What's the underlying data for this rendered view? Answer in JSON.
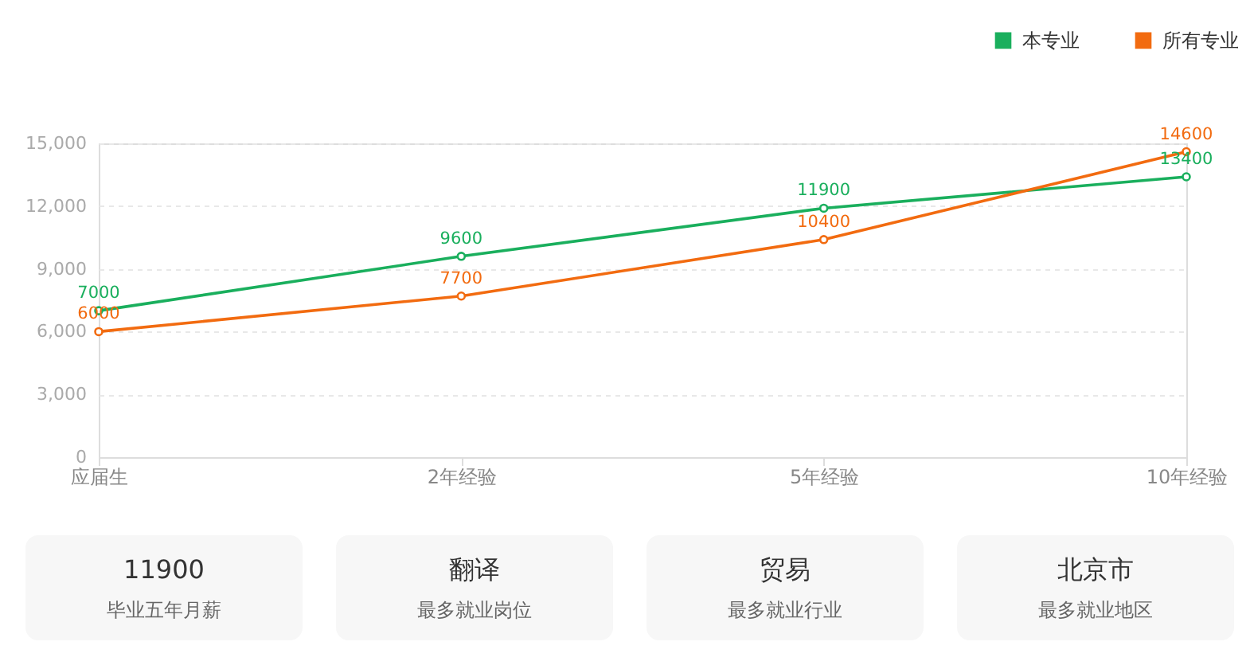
{
  "chart_data": [
    {
      "type": "line",
      "categories": [
        "应届生",
        "2年经验",
        "5年经验",
        "10年经验"
      ],
      "series": [
        {
          "name": "本专业",
          "color": "#1aaf5d",
          "values": [
            7000,
            9600,
            11900,
            13400
          ]
        },
        {
          "name": "所有专业",
          "color": "#f26b10",
          "values": [
            6000,
            7700,
            10400,
            14600
          ]
        }
      ],
      "ylim": [
        0,
        15000
      ],
      "yticks": [
        0,
        {
          "value": 3000,
          "label": "3,000"
        },
        {
          "value": 6000,
          "label": "6,000"
        },
        {
          "value": 9000,
          "label": "9,000"
        },
        {
          "value": 12000,
          "label": "12,000"
        },
        {
          "value": 15000,
          "label": "15,000"
        }
      ],
      "grid": "y",
      "legend": "top right",
      "marker": "circle",
      "line_style": "solid",
      "data_labels": true
    },
    {
      "type": "other",
      "annotations": [
        "11900",
        "毕业五年月薪",
        "翻译",
        "最多就业岗位",
        "贸易",
        "最多就业行业",
        "北京市",
        "最多就业地区"
      ]
    }
  ]
}
